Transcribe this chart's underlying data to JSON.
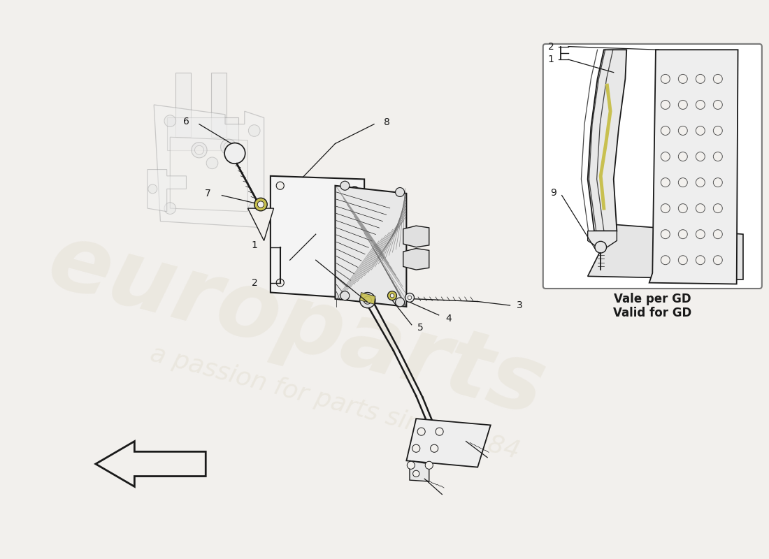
{
  "bg_color": "#f2f0ed",
  "line_color": "#1a1a1a",
  "light_line": "#999999",
  "very_light": "#cccccc",
  "accent_yellow": "#c8c050",
  "inset_label_line1": "Vale per GD",
  "inset_label_line2": "Valid for GD",
  "wm1": "europarts",
  "wm2": "a passion for parts since 1984",
  "wm_color": "#d8d0ba"
}
